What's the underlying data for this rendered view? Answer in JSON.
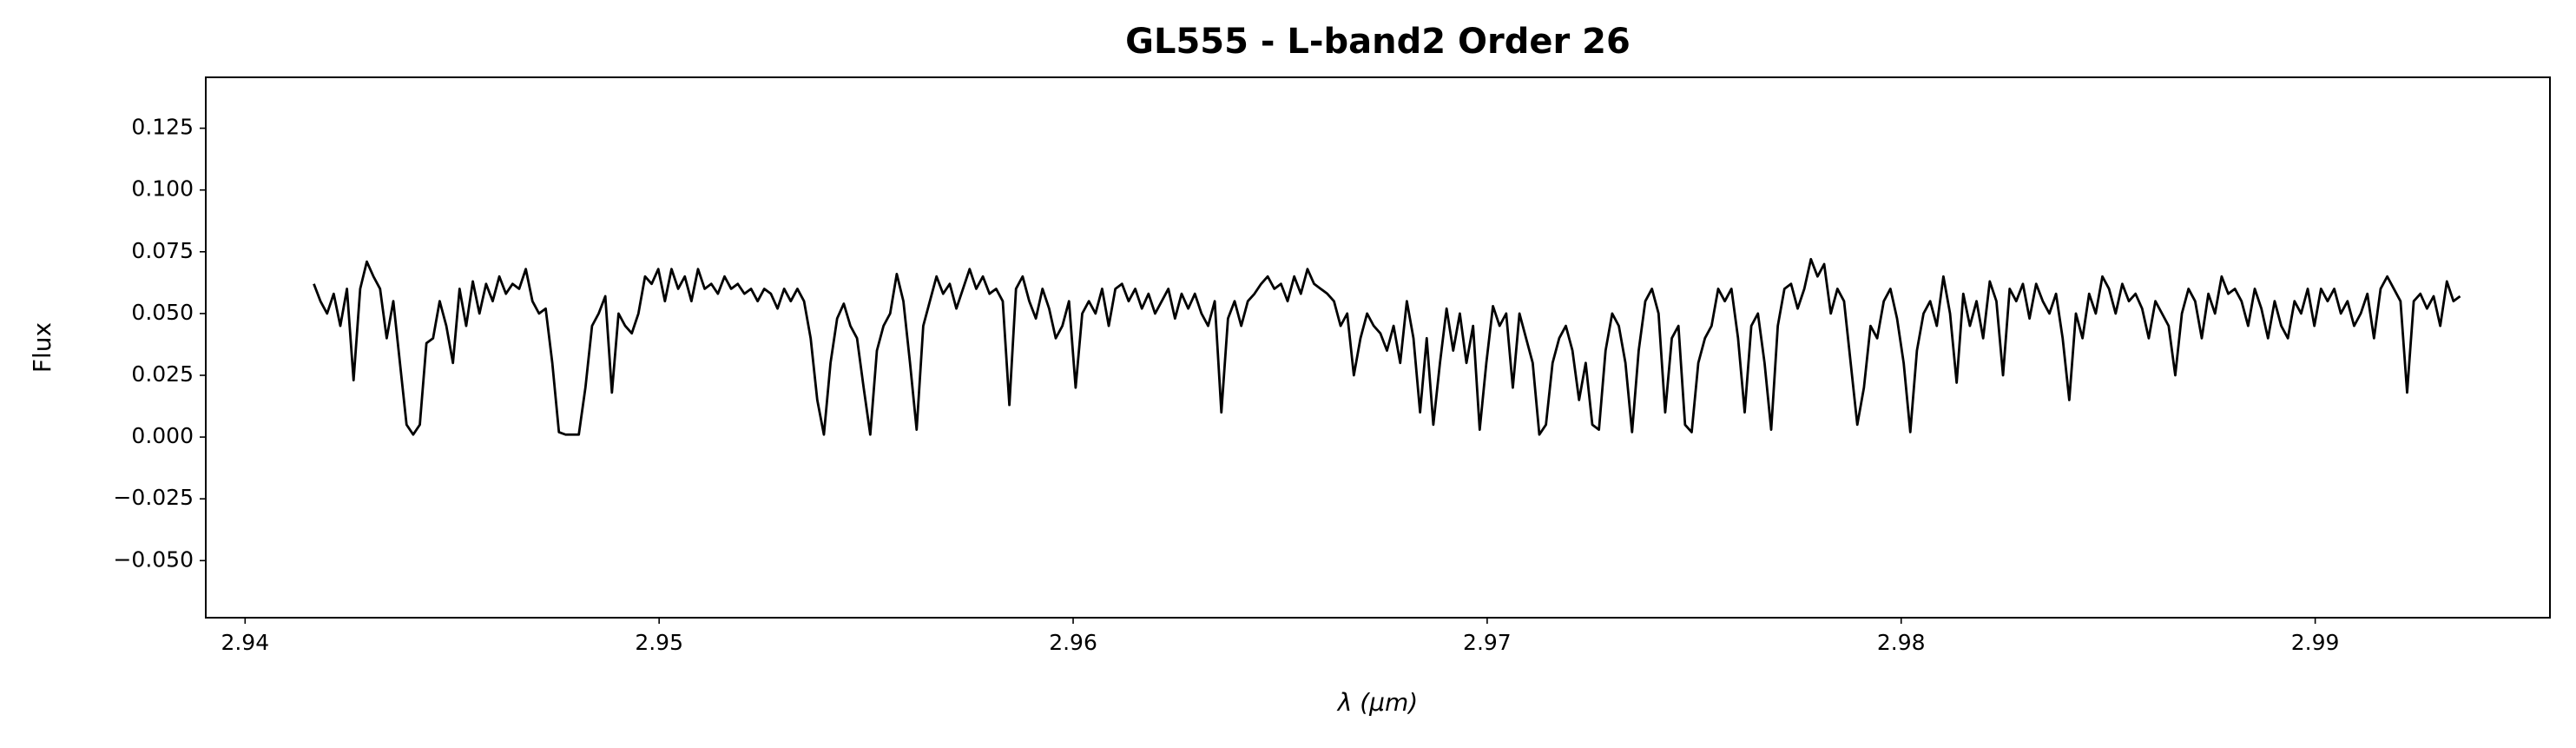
{
  "chart_data": {
    "type": "line",
    "title": "GL555 - L-band2 Order 26",
    "x_label": "λ (μm)",
    "y_label": "Flux",
    "xlim": [
      2.93905,
      2.99567
    ],
    "ylim": [
      -0.0731,
      0.1456
    ],
    "xticks": [
      2.94,
      2.95,
      2.96,
      2.97,
      2.98,
      2.99
    ],
    "yticks": [
      {
        "value": -0.05,
        "label": "−0.050"
      },
      {
        "value": -0.025,
        "label": "−0.025"
      },
      {
        "value": 0,
        "label": "0.000"
      },
      {
        "value": 0.025,
        "label": "0.025"
      },
      {
        "value": 0.05,
        "label": "0.050"
      },
      {
        "value": 0.075,
        "label": "0.075"
      },
      {
        "value": 0.1,
        "label": "0.100"
      },
      {
        "value": 0.125,
        "label": "0.125"
      }
    ],
    "grid": false,
    "x": [
      2.94166,
      2.94182,
      2.94198,
      2.94214,
      2.9423,
      2.94246,
      2.94262,
      2.94278,
      2.94294,
      2.9431,
      2.94326,
      2.94342,
      2.94358,
      2.94374,
      2.9439,
      2.94406,
      2.94422,
      2.94438,
      2.94454,
      2.9447,
      2.94486,
      2.94502,
      2.94518,
      2.94534,
      2.9455,
      2.94566,
      2.94582,
      2.94598,
      2.94614,
      2.9463,
      2.94646,
      2.94662,
      2.94678,
      2.94694,
      2.9471,
      2.94726,
      2.94742,
      2.94758,
      2.94774,
      2.9479,
      2.94806,
      2.94822,
      2.94838,
      2.94854,
      2.9487,
      2.94886,
      2.94902,
      2.94918,
      2.94934,
      2.9495,
      2.94966,
      2.94982,
      2.94998,
      2.95014,
      2.9503,
      2.95046,
      2.95062,
      2.95078,
      2.95094,
      2.9511,
      2.95126,
      2.95142,
      2.95158,
      2.95174,
      2.9519,
      2.95206,
      2.95222,
      2.95238,
      2.95254,
      2.9527,
      2.95286,
      2.95302,
      2.95318,
      2.95334,
      2.9535,
      2.95366,
      2.95382,
      2.95398,
      2.95414,
      2.9543,
      2.95446,
      2.95462,
      2.95478,
      2.95494,
      2.9551,
      2.95526,
      2.95542,
      2.95558,
      2.95574,
      2.9559,
      2.95606,
      2.95622,
      2.95638,
      2.95654,
      2.9567,
      2.95686,
      2.95702,
      2.95718,
      2.95734,
      2.9575,
      2.95766,
      2.95782,
      2.95798,
      2.95814,
      2.9583,
      2.95846,
      2.95862,
      2.95878,
      2.95894,
      2.9591,
      2.95926,
      2.95942,
      2.95958,
      2.95974,
      2.9599,
      2.96006,
      2.96022,
      2.96038,
      2.96054,
      2.9607,
      2.96086,
      2.96102,
      2.96118,
      2.96134,
      2.9615,
      2.96166,
      2.96182,
      2.96198,
      2.96214,
      2.9623,
      2.96246,
      2.96262,
      2.96278,
      2.96294,
      2.9631,
      2.96326,
      2.96342,
      2.96358,
      2.96374,
      2.9639,
      2.96406,
      2.96422,
      2.96438,
      2.96454,
      2.9647,
      2.96486,
      2.96502,
      2.96518,
      2.96534,
      2.9655,
      2.96566,
      2.96582,
      2.96598,
      2.96614,
      2.9663,
      2.96646,
      2.96662,
      2.96678,
      2.96694,
      2.9671,
      2.96726,
      2.96742,
      2.96758,
      2.96774,
      2.9679,
      2.96806,
      2.96822,
      2.96838,
      2.96854,
      2.9687,
      2.96886,
      2.96902,
      2.96918,
      2.96934,
      2.9695,
      2.96966,
      2.96982,
      2.96998,
      2.97014,
      2.9703,
      2.97046,
      2.97062,
      2.97078,
      2.97094,
      2.9711,
      2.97126,
      2.97142,
      2.97158,
      2.97174,
      2.9719,
      2.97206,
      2.97222,
      2.97238,
      2.97254,
      2.9727,
      2.97286,
      2.97302,
      2.97318,
      2.97334,
      2.9735,
      2.97366,
      2.97382,
      2.97398,
      2.97414,
      2.9743,
      2.97446,
      2.97462,
      2.97478,
      2.97494,
      2.9751,
      2.97526,
      2.97542,
      2.97558,
      2.97574,
      2.9759,
      2.97606,
      2.97622,
      2.97638,
      2.97654,
      2.9767,
      2.97686,
      2.97702,
      2.97718,
      2.97734,
      2.9775,
      2.97766,
      2.97782,
      2.97798,
      2.97814,
      2.9783,
      2.97846,
      2.97862,
      2.97878,
      2.97894,
      2.9791,
      2.97926,
      2.97942,
      2.97958,
      2.97974,
      2.9799,
      2.98006,
      2.98022,
      2.98038,
      2.98054,
      2.9807,
      2.98086,
      2.98102,
      2.98118,
      2.98134,
      2.9815,
      2.98166,
      2.98182,
      2.98198,
      2.98214,
      2.9823,
      2.98246,
      2.98262,
      2.98278,
      2.98294,
      2.9831,
      2.98326,
      2.98342,
      2.98358,
      2.98374,
      2.9839,
      2.98406,
      2.98422,
      2.98438,
      2.98454,
      2.9847,
      2.98486,
      2.98502,
      2.98518,
      2.98534,
      2.9855,
      2.98566,
      2.98582,
      2.98598,
      2.98614,
      2.9863,
      2.98646,
      2.98662,
      2.98678,
      2.98694,
      2.9871,
      2.98726,
      2.98742,
      2.98758,
      2.98774,
      2.9879,
      2.98806,
      2.98822,
      2.98838,
      2.98854,
      2.9887,
      2.98886,
      2.98902,
      2.98918,
      2.98934,
      2.9895,
      2.98966,
      2.98982,
      2.98998,
      2.99014,
      2.9903,
      2.99046,
      2.99062,
      2.99078,
      2.99094,
      2.9911,
      2.99126,
      2.99142,
      2.99158,
      2.99174,
      2.9919,
      2.99206,
      2.99222,
      2.99238,
      2.99254,
      2.9927,
      2.99286,
      2.99302,
      2.99318,
      2.99334,
      2.9935
    ],
    "series": [
      {
        "name": "GL555",
        "color": "#000000",
        "values": [
          0.062,
          0.055,
          0.05,
          0.058,
          0.045,
          0.06,
          0.023,
          0.06,
          0.071,
          0.065,
          0.06,
          0.04,
          0.055,
          0.03,
          0.005,
          0.001,
          0.005,
          0.038,
          0.04,
          0.055,
          0.045,
          0.03,
          0.06,
          0.045,
          0.063,
          0.05,
          0.062,
          0.055,
          0.065,
          0.058,
          0.062,
          0.06,
          0.068,
          0.055,
          0.05,
          0.052,
          0.03,
          0.002,
          0.001,
          0.001,
          0.001,
          0.02,
          0.045,
          0.05,
          0.057,
          0.018,
          0.05,
          0.045,
          0.042,
          0.05,
          0.065,
          0.062,
          0.068,
          0.055,
          0.068,
          0.06,
          0.065,
          0.055,
          0.068,
          0.06,
          0.062,
          0.058,
          0.065,
          0.06,
          0.062,
          0.058,
          0.06,
          0.055,
          0.06,
          0.058,
          0.052,
          0.06,
          0.055,
          0.06,
          0.055,
          0.04,
          0.015,
          0.001,
          0.03,
          0.048,
          0.054,
          0.045,
          0.04,
          0.02,
          0.001,
          0.035,
          0.045,
          0.05,
          0.066,
          0.055,
          0.03,
          0.003,
          0.045,
          0.055,
          0.065,
          0.058,
          0.062,
          0.052,
          0.06,
          0.068,
          0.06,
          0.065,
          0.058,
          0.06,
          0.055,
          0.013,
          0.06,
          0.065,
          0.055,
          0.048,
          0.06,
          0.052,
          0.04,
          0.045,
          0.055,
          0.02,
          0.05,
          0.055,
          0.05,
          0.06,
          0.045,
          0.06,
          0.062,
          0.055,
          0.06,
          0.052,
          0.058,
          0.05,
          0.055,
          0.06,
          0.048,
          0.058,
          0.052,
          0.058,
          0.05,
          0.045,
          0.055,
          0.01,
          0.048,
          0.055,
          0.045,
          0.055,
          0.058,
          0.062,
          0.065,
          0.06,
          0.062,
          0.055,
          0.065,
          0.058,
          0.068,
          0.062,
          0.06,
          0.058,
          0.055,
          0.045,
          0.05,
          0.025,
          0.04,
          0.05,
          0.045,
          0.042,
          0.035,
          0.045,
          0.03,
          0.055,
          0.04,
          0.01,
          0.04,
          0.005,
          0.03,
          0.052,
          0.035,
          0.05,
          0.03,
          0.045,
          0.003,
          0.03,
          0.053,
          0.045,
          0.05,
          0.02,
          0.05,
          0.04,
          0.03,
          0.001,
          0.005,
          0.03,
          0.04,
          0.045,
          0.035,
          0.015,
          0.03,
          0.005,
          0.003,
          0.035,
          0.05,
          0.045,
          0.03,
          0.002,
          0.035,
          0.055,
          0.06,
          0.05,
          0.01,
          0.04,
          0.045,
          0.005,
          0.002,
          0.03,
          0.04,
          0.045,
          0.06,
          0.055,
          0.06,
          0.04,
          0.01,
          0.045,
          0.05,
          0.03,
          0.003,
          0.045,
          0.06,
          0.062,
          0.052,
          0.06,
          0.072,
          0.065,
          0.07,
          0.05,
          0.06,
          0.055,
          0.03,
          0.005,
          0.02,
          0.045,
          0.04,
          0.055,
          0.06,
          0.048,
          0.03,
          0.002,
          0.035,
          0.05,
          0.055,
          0.045,
          0.065,
          0.05,
          0.022,
          0.058,
          0.045,
          0.055,
          0.04,
          0.063,
          0.055,
          0.025,
          0.06,
          0.055,
          0.062,
          0.048,
          0.062,
          0.055,
          0.05,
          0.058,
          0.04,
          0.015,
          0.05,
          0.04,
          0.058,
          0.05,
          0.065,
          0.06,
          0.05,
          0.062,
          0.055,
          0.058,
          0.052,
          0.04,
          0.055,
          0.05,
          0.045,
          0.025,
          0.05,
          0.06,
          0.055,
          0.04,
          0.058,
          0.05,
          0.065,
          0.058,
          0.06,
          0.055,
          0.045,
          0.06,
          0.052,
          0.04,
          0.055,
          0.045,
          0.04,
          0.055,
          0.05,
          0.06,
          0.045,
          0.06,
          0.055,
          0.06,
          0.05,
          0.055,
          0.045,
          0.05,
          0.058,
          0.04,
          0.06,
          0.065,
          0.06,
          0.055,
          0.018,
          0.055,
          0.058,
          0.052,
          0.057,
          0.045,
          0.063,
          0.055,
          0.057
        ]
      }
    ]
  }
}
